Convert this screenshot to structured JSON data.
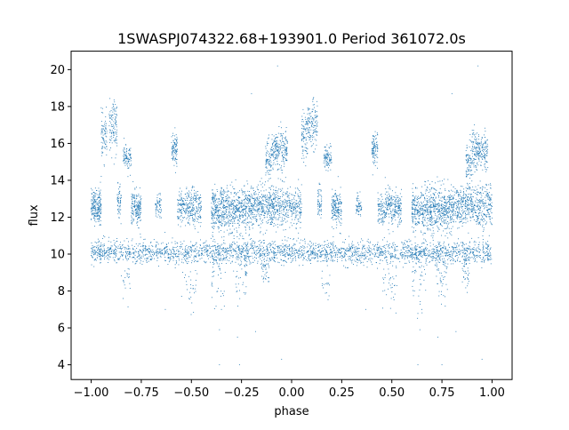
{
  "chart_data": {
    "type": "scatter",
    "title": "1SWASPJ074322.68+193901.0 Period 361072.0s",
    "xlabel": "phase",
    "ylabel": "flux",
    "xlim": [
      -1.1,
      1.1
    ],
    "ylim": [
      3.2,
      21.0
    ],
    "x_ticks": [
      -1.0,
      -0.75,
      -0.5,
      -0.25,
      0.0,
      0.25,
      0.5,
      0.75,
      1.0
    ],
    "x_tick_labels": [
      "−1.00",
      "−0.75",
      "−0.50",
      "−0.25",
      "0.00",
      "0.25",
      "0.50",
      "0.75",
      "1.00"
    ],
    "y_ticks": [
      4,
      6,
      8,
      10,
      12,
      14,
      16,
      18,
      20
    ],
    "y_tick_labels": [
      "4",
      "6",
      "8",
      "10",
      "12",
      "14",
      "16",
      "18",
      "20"
    ],
    "grid": false,
    "legend": "none",
    "marker_color": "#1f77b4",
    "series": [
      {
        "groups": [
          {
            "x_range": [
              -1.0,
              -0.95
            ],
            "y_center": 12.6,
            "y_spread": 0.45,
            "count": 220
          },
          {
            "x_range": [
              -0.95,
              -0.92
            ],
            "y_center": 16.3,
            "y_spread": 0.6,
            "count": 80
          },
          {
            "x_range": [
              -0.91,
              -0.87
            ],
            "y_center": 16.9,
            "y_spread": 0.7,
            "count": 110
          },
          {
            "x_range": [
              -0.87,
              -0.85
            ],
            "y_center": 12.8,
            "y_spread": 0.45,
            "count": 60
          },
          {
            "x_range": [
              -0.84,
              -0.8
            ],
            "y_center": 15.2,
            "y_spread": 0.35,
            "count": 90
          },
          {
            "x_range": [
              -0.8,
              -0.75
            ],
            "y_center": 12.5,
            "y_spread": 0.45,
            "count": 180
          },
          {
            "x_range": [
              -0.68,
              -0.65
            ],
            "y_center": 12.6,
            "y_spread": 0.3,
            "count": 60
          },
          {
            "x_range": [
              -0.6,
              -0.57
            ],
            "y_center": 15.7,
            "y_spread": 0.45,
            "count": 100
          },
          {
            "x_range": [
              -0.57,
              -0.45
            ],
            "y_center": 12.5,
            "y_spread": 0.5,
            "count": 320
          },
          {
            "x_range": [
              -0.4,
              -0.2
            ],
            "y_center": 12.4,
            "y_spread": 0.6,
            "count": 700
          },
          {
            "x_range": [
              -0.13,
              -0.1
            ],
            "y_center": 15.0,
            "y_spread": 0.6,
            "count": 80
          },
          {
            "x_range": [
              -0.1,
              -0.02
            ],
            "y_center": 15.6,
            "y_spread": 0.5,
            "count": 220
          },
          {
            "x_range": [
              -0.2,
              0.05
            ],
            "y_center": 12.6,
            "y_spread": 0.55,
            "count": 700
          },
          {
            "x_range": [
              0.05,
              0.08
            ],
            "y_center": 16.4,
            "y_spread": 0.7,
            "count": 90
          },
          {
            "x_range": [
              0.08,
              0.13
            ],
            "y_center": 17.0,
            "y_spread": 0.6,
            "count": 130
          },
          {
            "x_range": [
              0.13,
              0.15
            ],
            "y_center": 12.8,
            "y_spread": 0.45,
            "count": 60
          },
          {
            "x_range": [
              0.16,
              0.2
            ],
            "y_center": 15.2,
            "y_spread": 0.35,
            "count": 90
          },
          {
            "x_range": [
              0.2,
              0.25
            ],
            "y_center": 12.5,
            "y_spread": 0.45,
            "count": 180
          },
          {
            "x_range": [
              0.32,
              0.35
            ],
            "y_center": 12.6,
            "y_spread": 0.3,
            "count": 60
          },
          {
            "x_range": [
              0.4,
              0.43
            ],
            "y_center": 15.7,
            "y_spread": 0.45,
            "count": 100
          },
          {
            "x_range": [
              0.43,
              0.55
            ],
            "y_center": 12.5,
            "y_spread": 0.5,
            "count": 320
          },
          {
            "x_range": [
              0.6,
              0.8
            ],
            "y_center": 12.4,
            "y_spread": 0.6,
            "count": 700
          },
          {
            "x_range": [
              0.87,
              0.9
            ],
            "y_center": 15.0,
            "y_spread": 0.6,
            "count": 80
          },
          {
            "x_range": [
              0.9,
              0.98
            ],
            "y_center": 15.6,
            "y_spread": 0.5,
            "count": 220
          },
          {
            "x_range": [
              0.8,
              1.0
            ],
            "y_center": 12.6,
            "y_spread": 0.55,
            "count": 560
          },
          {
            "x_range": [
              -1.0,
              1.0
            ],
            "y_center": 10.1,
            "y_spread": 0.3,
            "count": 2600
          },
          {
            "x_range": [
              -0.28,
              -0.22
            ],
            "y_center": 9.0,
            "y_spread": 0.8,
            "count": 60
          },
          {
            "x_range": [
              0.72,
              0.78
            ],
            "y_center": 9.0,
            "y_spread": 0.8,
            "count": 60
          },
          {
            "x_range": [
              -0.4,
              -0.33
            ],
            "y_center": 9.0,
            "y_spread": 1.0,
            "count": 50
          },
          {
            "x_range": [
              0.6,
              0.67
            ],
            "y_center": 9.0,
            "y_spread": 1.0,
            "count": 50
          },
          {
            "x_range": [
              -0.15,
              -0.11
            ],
            "y_center": 9.2,
            "y_spread": 0.5,
            "count": 40
          },
          {
            "x_range": [
              0.85,
              0.89
            ],
            "y_center": 9.2,
            "y_spread": 0.5,
            "count": 40
          },
          {
            "x_range": [
              -0.55,
              -0.47
            ],
            "y_center": 8.6,
            "y_spread": 0.8,
            "count": 40
          },
          {
            "x_range": [
              0.45,
              0.53
            ],
            "y_center": 8.6,
            "y_spread": 0.8,
            "count": 40
          },
          {
            "x_range": [
              -0.85,
              -0.8
            ],
            "y_center": 8.5,
            "y_spread": 0.5,
            "count": 20
          },
          {
            "x_range": [
              0.15,
              0.2
            ],
            "y_center": 8.5,
            "y_spread": 0.5,
            "count": 20
          }
        ],
        "outliers": [
          [
            -0.36,
            4.0
          ],
          [
            -0.26,
            4.0
          ],
          [
            0.63,
            4.0
          ],
          [
            0.75,
            4.0
          ],
          [
            -0.36,
            5.9
          ],
          [
            -0.27,
            5.5
          ],
          [
            0.64,
            5.9
          ],
          [
            0.73,
            5.5
          ],
          [
            -0.35,
            7.0
          ],
          [
            0.65,
            7.0
          ],
          [
            0.82,
            5.8
          ],
          [
            -0.18,
            5.8
          ],
          [
            -0.07,
            20.2
          ],
          [
            0.93,
            20.2
          ],
          [
            -0.2,
            18.7
          ],
          [
            0.8,
            18.7
          ],
          [
            -0.05,
            4.3
          ],
          [
            0.95,
            4.3
          ],
          [
            -0.63,
            7.0
          ],
          [
            0.37,
            7.0
          ]
        ]
      }
    ]
  }
}
